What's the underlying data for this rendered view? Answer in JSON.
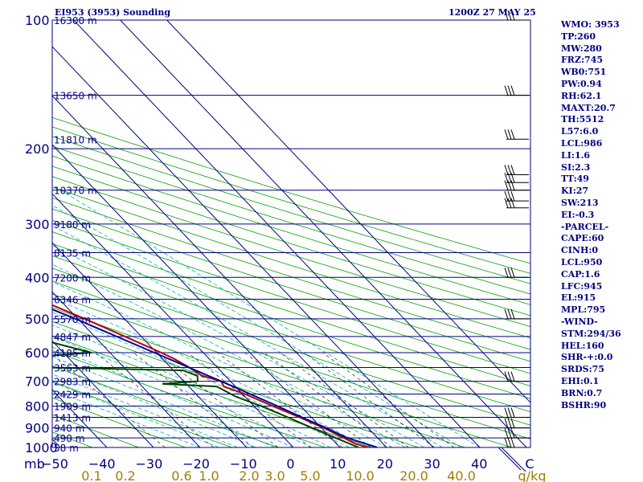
{
  "header": {
    "station": "EI953 (3953) Sounding",
    "time": "1200Z 27 MAY 25"
  },
  "chart_data": {
    "type": "line",
    "title": "EI953 (3953) Sounding",
    "xlabel": "",
    "ylabel": "mb",
    "pressure_levels": [
      100,
      200,
      300,
      400,
      500,
      600,
      700,
      800,
      900,
      1000
    ],
    "temp_ticks": [
      -50,
      -40,
      -30,
      -20,
      -10,
      0,
      10,
      20,
      30,
      40
    ],
    "mixing_ratio_ticks": [
      "0.1",
      "0.2",
      "0.6",
      "1.0",
      "2.0",
      "3.0",
      "5.0",
      "10.0",
      "20.0",
      "40.0"
    ],
    "mixing_ratio_unit": "g/kg",
    "wind_axis_label": "C",
    "height_labels": [
      {
        "p": 100,
        "label": "16300 m"
      },
      {
        "p": 150,
        "label": "13650 m"
      },
      {
        "p": 190,
        "label": "11810 m"
      },
      {
        "p": 250,
        "label": "10370 m"
      },
      {
        "p": 300,
        "label": "9180 m"
      },
      {
        "p": 350,
        "label": "8135 m"
      },
      {
        "p": 400,
        "label": "7200 m"
      },
      {
        "p": 450,
        "label": "6346 m"
      },
      {
        "p": 500,
        "label": "5570 m"
      },
      {
        "p": 550,
        "label": "4847 m"
      },
      {
        "p": 600,
        "label": "4185 m"
      },
      {
        "p": 650,
        "label": "3563 m"
      },
      {
        "p": 700,
        "label": "2983 m"
      },
      {
        "p": 750,
        "label": "2429 m"
      },
      {
        "p": 800,
        "label": "1909 m"
      },
      {
        "p": 850,
        "label": "1413 m"
      },
      {
        "p": 900,
        "label": "940 m"
      },
      {
        "p": 950,
        "label": "490 m"
      },
      {
        "p": 1000,
        "label": "58 m"
      }
    ],
    "series": [
      {
        "name": "",
        "role": "temperature",
        "color": "#b00000",
        "points": [
          {
            "p": 1000,
            "t": 16
          },
          {
            "p": 980,
            "t": 14
          },
          {
            "p": 950,
            "t": 12.8
          },
          {
            "p": 900,
            "t": 10.5
          },
          {
            "p": 850,
            "t": 7.5
          },
          {
            "p": 800,
            "t": 4
          },
          {
            "p": 750,
            "t": 0.5
          },
          {
            "p": 720,
            "t": -2.5
          },
          {
            "p": 700,
            "t": -2
          },
          {
            "p": 680,
            "t": -5
          },
          {
            "p": 650,
            "t": -6
          },
          {
            "p": 620,
            "t": -7.5
          },
          {
            "p": 600,
            "t": -9
          },
          {
            "p": 550,
            "t": -13.5
          },
          {
            "p": 500,
            "t": -18.5
          },
          {
            "p": 450,
            "t": -24.5
          },
          {
            "p": 400,
            "t": -30.5
          },
          {
            "p": 350,
            "t": -38
          },
          {
            "p": 320,
            "t": -43
          },
          {
            "p": 300,
            "t": -46.5
          },
          {
            "p": 280,
            "t": -49
          },
          {
            "p": 265,
            "t": -50.5
          },
          {
            "p": 255,
            "t": -49.5
          },
          {
            "p": 230,
            "t": -46
          },
          {
            "p": 200,
            "t": -45
          },
          {
            "p": 180,
            "t": -46
          },
          {
            "p": 150,
            "t": -49
          },
          {
            "p": 125,
            "t": -52
          },
          {
            "p": 100,
            "t": -57
          }
        ]
      },
      {
        "name": "",
        "role": "dewpoint",
        "color": "#004000",
        "points": [
          {
            "p": 1000,
            "t": 14
          },
          {
            "p": 950,
            "t": 11
          },
          {
            "p": 900,
            "t": 8
          },
          {
            "p": 850,
            "t": 5
          },
          {
            "p": 800,
            "t": 1.5
          },
          {
            "p": 760,
            "t": -2
          },
          {
            "p": 720,
            "t": -4
          },
          {
            "p": 710,
            "t": -15
          },
          {
            "p": 700,
            "t": -7
          },
          {
            "p": 680,
            "t": -6
          },
          {
            "p": 660,
            "t": -8
          },
          {
            "p": 650,
            "t": -36
          },
          {
            "p": 630,
            "t": -52
          },
          {
            "p": 600,
            "t": -24
          },
          {
            "p": 550,
            "t": -34
          },
          {
            "p": 500,
            "t": -40
          },
          {
            "p": 460,
            "t": -42
          },
          {
            "p": 420,
            "t": -30
          },
          {
            "p": 380,
            "t": -38
          },
          {
            "p": 350,
            "t": -44
          },
          {
            "p": 330,
            "t": -52
          },
          {
            "p": 310,
            "t": -48
          },
          {
            "p": 280,
            "t": -50
          },
          {
            "p": 265,
            "t": -60
          },
          {
            "p": 245,
            "t": -64
          },
          {
            "p": 235,
            "t": -67
          },
          {
            "p": 195,
            "t": -80
          },
          {
            "p": 150,
            "t": -85
          },
          {
            "p": 125,
            "t": -88
          },
          {
            "p": 100,
            "t": -95
          }
        ]
      },
      {
        "name": "",
        "role": "parcel",
        "color": "#0000a0",
        "points": [
          {
            "p": 1000,
            "t": 18
          },
          {
            "p": 950,
            "t": 13.5
          },
          {
            "p": 900,
            "t": 11
          },
          {
            "p": 850,
            "t": 8
          },
          {
            "p": 800,
            "t": 5
          },
          {
            "p": 700,
            "t": -2
          },
          {
            "p": 600,
            "t": -10.5
          },
          {
            "p": 500,
            "t": -20.5
          },
          {
            "p": 400,
            "t": -34
          },
          {
            "p": 300,
            "t": -53
          },
          {
            "p": 250,
            "t": -64
          },
          {
            "p": 200,
            "t": -77
          },
          {
            "p": 150,
            "t": -92
          },
          {
            "p": 100,
            "t": -110
          }
        ]
      }
    ],
    "stats": [
      "WMO: 3953",
      "TP:260",
      "MW:280",
      "FRZ:745",
      "WB0:751",
      "PW:0.94",
      "RH:62.1",
      "MAXT:20.7",
      "TH:5512",
      "L57:6.0",
      "LCL:986",
      "LI:1.6",
      "SI:2.3",
      "TT:49",
      "KI:27",
      "SW:213",
      "EI:-0.3",
      "-PARCEL-",
      "CAPE:60",
      "CINH:0",
      "LCL:950",
      "CAP:1.6",
      "LFC:945",
      "EL:915",
      "MPL:795",
      "-WIND-",
      "STM:294/36",
      "HEL:160",
      "SHR-+:0.0",
      "SRDS:75",
      "EHI:0.1",
      "BRN:0.7",
      "BSHR:90"
    ],
    "colors": {
      "axes": "#000080",
      "isotherm": "#000080",
      "dry_adiabat": "#00a000",
      "moist_adiabat": "#00b0c0",
      "mixing_ratio": "#000000",
      "mixing_ratio_label": "#a08000",
      "barbs": "#000000"
    }
  }
}
